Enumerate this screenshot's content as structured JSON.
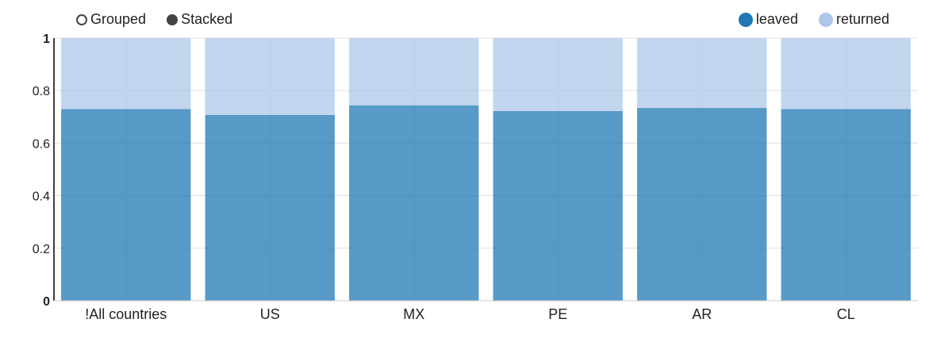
{
  "controls": {
    "grouped_label": "Grouped",
    "stacked_label": "Stacked",
    "selected": "Stacked"
  },
  "colors": {
    "leaved": "#1f77b4",
    "returned": "#aec7e8",
    "grid": "#e0e0e0",
    "axis": "#000000"
  },
  "chart_data": {
    "type": "bar",
    "stacked": true,
    "categories": [
      "!All countries",
      "US",
      "MX",
      "PE",
      "AR",
      "CL"
    ],
    "series": [
      {
        "name": "leaved",
        "values": [
          0.73,
          0.707,
          0.744,
          0.722,
          0.734,
          0.73
        ]
      },
      {
        "name": "returned",
        "values": [
          0.27,
          0.293,
          0.256,
          0.278,
          0.266,
          0.27
        ]
      }
    ],
    "ylim": [
      0,
      1
    ],
    "yticks": [
      "0",
      "0.2",
      "0.4",
      "0.6",
      "0.8",
      "1"
    ],
    "ytick_values": [
      0,
      0.2,
      0.4,
      0.6,
      0.8,
      1
    ],
    "grid": true,
    "legend_position": "top-right"
  }
}
